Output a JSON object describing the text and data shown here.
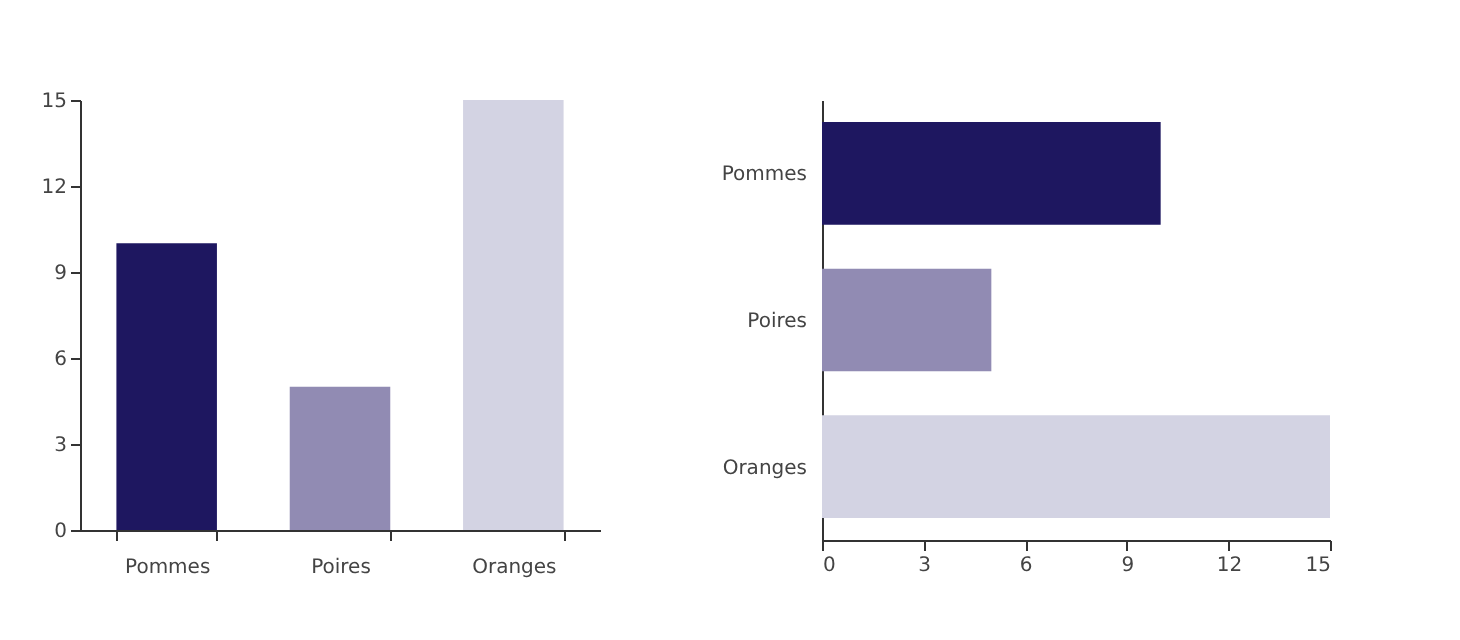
{
  "chart_data": [
    {
      "type": "bar",
      "categories": [
        "Pommes",
        "Poires",
        "Oranges"
      ],
      "values": [
        10,
        5,
        15
      ],
      "colors": [
        "#1e1760",
        "#918bb3",
        "#d3d3e3"
      ],
      "ylim": [
        0,
        15
      ],
      "yticks": [
        0,
        3,
        6,
        9,
        12,
        15
      ],
      "grid": false,
      "legend": false
    },
    {
      "type": "bar",
      "orientation": "horizontal",
      "categories": [
        "Pommes",
        "Poires",
        "Oranges"
      ],
      "values": [
        10,
        5,
        15
      ],
      "colors": [
        "#1e1760",
        "#918bb3",
        "#d3d3e3"
      ],
      "xlim": [
        0,
        15
      ],
      "xticks": [
        0,
        3,
        6,
        9,
        12,
        15
      ],
      "grid": false,
      "legend": false
    }
  ]
}
